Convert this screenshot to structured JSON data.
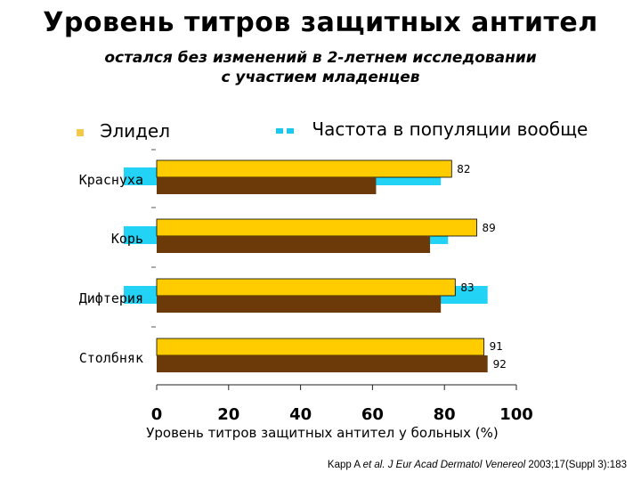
{
  "header": {
    "title": "Уровень титров защитных антител",
    "subtitle_line1": "остался без изменений в 2-летнем исследовании",
    "subtitle_line2": "с участием младенцев"
  },
  "legend": {
    "item1": "Элидел",
    "item2": "Частота в популяции вообще"
  },
  "citation": {
    "authors": "Kapp A ",
    "etal": "et al",
    "journal": ". J Eur Acad Dermatol Venereol ",
    "ref": "2003;17(Suppl 3):183"
  },
  "colors": {
    "elidel_legend": "#F2C94C",
    "population_legend": "#1EC8F0",
    "bar_yellow": "#FFCC00",
    "bar_brown": "#6B3A08",
    "bar_cyan": "#22D3F5"
  },
  "chart_data": {
    "type": "bar",
    "orientation": "horizontal",
    "categories": [
      "Краснуха",
      "Корь",
      "Дифтерия",
      "Столбняк"
    ],
    "series": [
      {
        "name": "Элидел",
        "values": [
          82,
          89,
          83,
          91
        ]
      },
      {
        "name": "",
        "values": [
          61,
          76,
          79,
          92
        ]
      },
      {
        "name": "Частота в популяции вообще",
        "values": [
          79,
          81,
          92,
          0
        ]
      }
    ],
    "data_labels": [
      "82",
      "89",
      "83",
      "91",
      "92"
    ],
    "xlabel": "Уровень титров защитных антител у больных (%)",
    "xticks": [
      "0",
      "20",
      "40",
      "60",
      "80",
      "100"
    ],
    "xlim": [
      0,
      100
    ],
    "grid": false,
    "legend_position": "top"
  }
}
